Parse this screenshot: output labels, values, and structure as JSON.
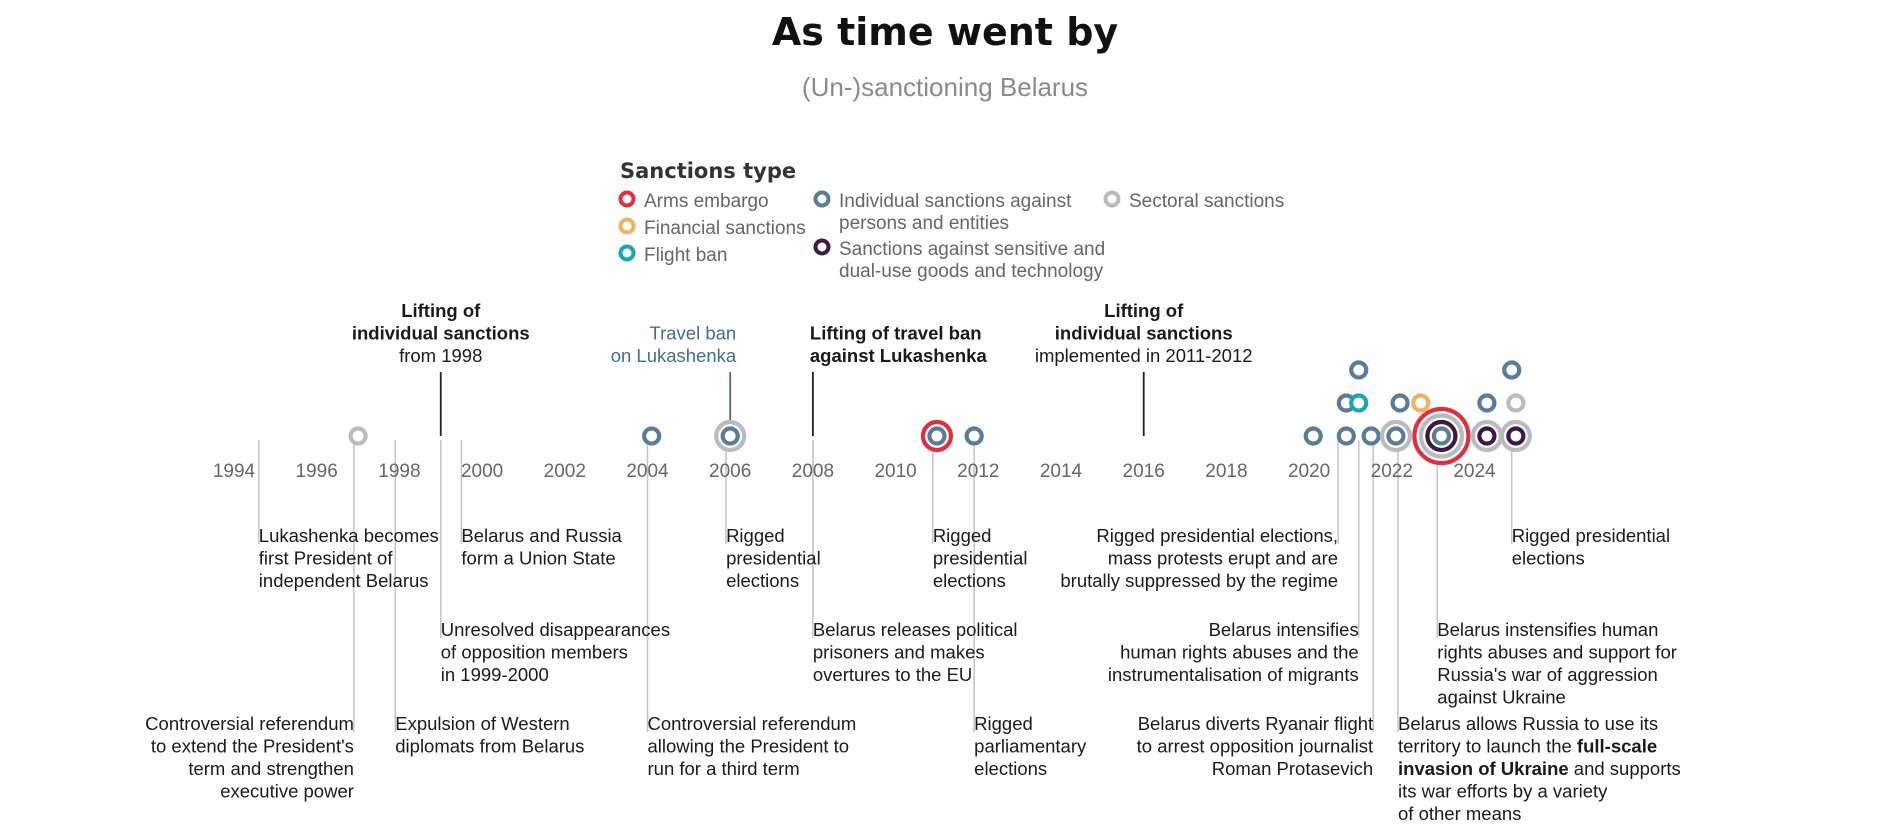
{
  "chart_data": {
    "type": "timeline",
    "title": "As time went by",
    "subtitle": "(Un-)sanctioning Belarus",
    "axis": {
      "start_year": 1994,
      "end_year": 2024,
      "tick_labels": [
        "1994",
        "1996",
        "1998",
        "2000",
        "2002",
        "2004",
        "2006",
        "2008",
        "2010",
        "2012",
        "2014",
        "2016",
        "2018",
        "2020",
        "2022",
        "2024"
      ]
    },
    "legend": {
      "title": "Sanctions type",
      "items": [
        {
          "key": "arms",
          "label_lines": [
            "Arms embargo"
          ]
        },
        {
          "key": "financial",
          "label_lines": [
            "Financial sanctions"
          ]
        },
        {
          "key": "flight",
          "label_lines": [
            "Flight ban"
          ]
        },
        {
          "key": "individual",
          "label_lines": [
            "Individual sanctions against",
            "persons and entities"
          ]
        },
        {
          "key": "dualuse",
          "label_lines": [
            "Sanctions against sensitive and",
            "dual-use goods and technology"
          ]
        },
        {
          "key": "sectoral",
          "label_lines": [
            "Sectoral sanctions"
          ]
        }
      ]
    },
    "colors": {
      "arms": "#e03040",
      "financial": "#f2b15c",
      "flight": "#1aa5b8",
      "individual": "#5a7d93",
      "dualuse": "#3c1a45",
      "sectoral": "#b9bcbf"
    },
    "sanctions": [
      {
        "year": 1997.0,
        "row": 0,
        "rings": [
          "sectoral"
        ]
      },
      {
        "year": 2004.1,
        "row": 0,
        "rings": [
          "individual"
        ]
      },
      {
        "year": 2006.0,
        "row": 0,
        "rings": [
          "individual",
          "sectoral"
        ]
      },
      {
        "year": 2011.0,
        "row": 0,
        "rings": [
          "individual",
          "arms"
        ]
      },
      {
        "year": 2011.9,
        "row": 0,
        "rings": [
          "individual"
        ]
      },
      {
        "year": 2020.1,
        "row": 0,
        "rings": [
          "individual"
        ]
      },
      {
        "year": 2020.9,
        "row": 0,
        "rings": [
          "individual"
        ]
      },
      {
        "year": 2020.9,
        "row": 1,
        "rings": [
          "individual"
        ]
      },
      {
        "year": 2021.2,
        "row": 1,
        "rings": [
          "flight"
        ]
      },
      {
        "year": 2021.2,
        "row": 2,
        "rings": [
          "individual"
        ]
      },
      {
        "year": 2021.5,
        "row": 0,
        "rings": [
          "individual"
        ]
      },
      {
        "year": 2022.1,
        "row": 0,
        "rings": [
          "individual",
          "sectoral"
        ]
      },
      {
        "year": 2022.2,
        "row": 1,
        "rings": [
          "individual"
        ]
      },
      {
        "year": 2022.7,
        "row": 1,
        "rings": [
          "financial"
        ]
      },
      {
        "year": 2023.2,
        "row": 0,
        "rings": [
          "individual",
          "dualuse",
          "sectoral",
          "arms"
        ]
      },
      {
        "year": 2024.3,
        "row": 0,
        "rings": [
          "dualuse",
          "sectoral"
        ]
      },
      {
        "year": 2024.3,
        "row": 1,
        "rings": [
          "individual"
        ]
      },
      {
        "year": 2025.0,
        "row": 0,
        "rings": [
          "dualuse",
          "sectoral"
        ]
      },
      {
        "year": 2025.0,
        "row": 1,
        "rings": [
          "sectoral"
        ]
      },
      {
        "year": 2024.9,
        "row": 2,
        "rings": [
          "individual"
        ]
      }
    ],
    "events": [
      {
        "year": 1994.6,
        "tier": 1,
        "align": "start",
        "lines": [
          "Lukashenka becomes",
          "first President of",
          "independent Belarus"
        ]
      },
      {
        "year": 1996.9,
        "tier": 3,
        "align": "end",
        "lines": [
          "Controversial referendum",
          "to extend the President's",
          "term and strengthen",
          "executive power"
        ]
      },
      {
        "year": 1997.9,
        "tier": 3,
        "align": "start",
        "lines": [
          "Expulsion of Western",
          "diplomats from Belarus"
        ]
      },
      {
        "year": 1999.5,
        "tier": 1,
        "align": "start",
        "lines": [
          "Belarus and Russia",
          "form a Union State"
        ]
      },
      {
        "year": 1999.0,
        "tier": 2,
        "align": "start",
        "lines": [
          "Unresolved disappearances",
          "of opposition members",
          "in 1999-2000"
        ]
      },
      {
        "year": 2004.0,
        "tier": 3,
        "align": "start",
        "lines": [
          "Controversial referendum",
          "allowing the President to",
          "run for a third term"
        ]
      },
      {
        "year": 2005.9,
        "tier": 1,
        "align": "start",
        "lines": [
          "Rigged",
          "presidential",
          "elections"
        ]
      },
      {
        "year": 2008.0,
        "tier": 2,
        "align": "start",
        "lines": [
          "Belarus releases political",
          "prisoners and makes",
          "overtures to the EU"
        ]
      },
      {
        "year": 2010.9,
        "tier": 1,
        "align": "start",
        "lines": [
          "Rigged",
          "presidential",
          "elections"
        ]
      },
      {
        "year": 2011.9,
        "tier": 3,
        "align": "start",
        "lines": [
          "Rigged",
          "parliamentary",
          "elections"
        ]
      },
      {
        "year": 2020.7,
        "tier": 1,
        "align": "end",
        "lines": [
          "Rigged presidential elections,",
          "mass protests erupt and are",
          "brutally suppressed by the regime"
        ]
      },
      {
        "year": 2021.2,
        "tier": 2,
        "align": "end",
        "lines": [
          "Belarus intensifies",
          "human rights abuses and the",
          "instrumentalisation of migrants"
        ]
      },
      {
        "year": 2021.55,
        "tier": 3,
        "align": "end",
        "lines": [
          "Belarus diverts Ryanair flight",
          "to arrest opposition journalist",
          "Roman Protasevich"
        ]
      },
      {
        "year": 2022.15,
        "tier": 3,
        "align": "start",
        "lines": [
          "Belarus allows Russia to use its",
          "territory to launch the @@full-scale",
          "@@invasion of Ukraine@@ and supports",
          "its war efforts by a variety",
          "of other means"
        ]
      },
      {
        "year": 2023.1,
        "tier": 2,
        "align": "start",
        "lines": [
          "Belarus instensifies human",
          "rights abuses and support for",
          "Russia's war of aggression",
          "against Ukraine"
        ]
      },
      {
        "year": 2024.9,
        "tier": 1,
        "align": "start",
        "lines": [
          "Rigged presidential",
          "elections"
        ]
      }
    ],
    "annotations": [
      {
        "year": 1999.0,
        "align": "middle",
        "lines": [
          {
            "text": "Lifting of",
            "style": "bold"
          },
          {
            "text": "individual sanctions",
            "style": "bold"
          },
          {
            "text": "from 1998",
            "style": "normal"
          }
        ]
      },
      {
        "year": 2006.0,
        "align": "end",
        "lines": [
          {
            "text": "Travel ban",
            "style": "blue"
          },
          {
            "text": "on Lukashenka",
            "style": "blue"
          }
        ]
      },
      {
        "year": 2008.0,
        "align": "start",
        "lines": [
          {
            "text": "Lifting of travel ban",
            "style": "bold"
          },
          {
            "text": "against Lukashenka",
            "style": "bold"
          }
        ]
      },
      {
        "year": 2016.0,
        "align": "middle",
        "lines": [
          {
            "text": "Lifting of",
            "style": "bold"
          },
          {
            "text": "individual sanctions",
            "style": "bold"
          },
          {
            "text": "implemented in 2011-2012",
            "style": "normal"
          }
        ]
      }
    ]
  }
}
